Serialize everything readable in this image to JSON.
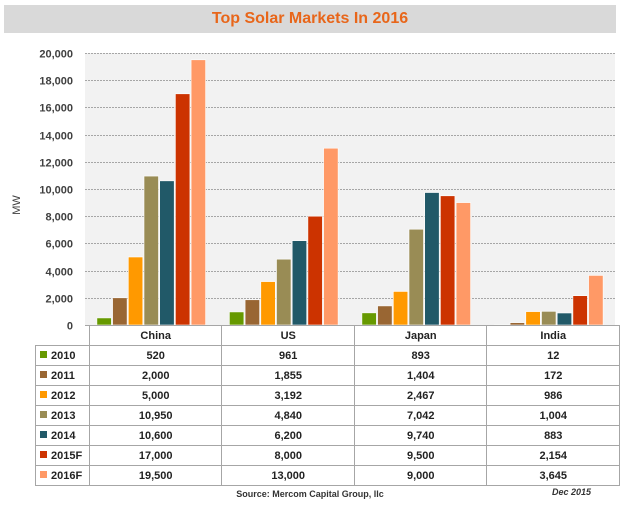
{
  "chart_data": {
    "type": "bar",
    "title": "Top Solar Markets In 2016",
    "xlabel": "",
    "ylabel": "MW",
    "ylim": [
      0,
      20000
    ],
    "yticks": [
      "0",
      "2,000",
      "4,000",
      "6,000",
      "8,000",
      "10,000",
      "12,000",
      "14,000",
      "16,000",
      "18,000",
      "20,000"
    ],
    "ytick_values": [
      0,
      2000,
      4000,
      6000,
      8000,
      10000,
      12000,
      14000,
      16000,
      18000,
      20000
    ],
    "grid": true,
    "legend": "data-table",
    "categories": [
      "China",
      "US",
      "Japan",
      "India"
    ],
    "series": [
      {
        "name": "2010",
        "color": "#669900",
        "values": [
          520,
          961,
          893,
          12
        ],
        "labels": [
          "520",
          "961",
          "893",
          "12"
        ]
      },
      {
        "name": "2011",
        "color": "#996633",
        "values": [
          2000,
          1855,
          1404,
          172
        ],
        "labels": [
          "2,000",
          "1,855",
          "1,404",
          "172"
        ]
      },
      {
        "name": "2012",
        "color": "#ff9900",
        "values": [
          5000,
          3192,
          2467,
          986
        ],
        "labels": [
          "5,000",
          "3,192",
          "2,467",
          "986"
        ]
      },
      {
        "name": "2013",
        "color": "#998c55",
        "values": [
          10950,
          4840,
          7042,
          1004
        ],
        "labels": [
          "10,950",
          "4,840",
          "7,042",
          "1,004"
        ]
      },
      {
        "name": "2014",
        "color": "#215968",
        "values": [
          10600,
          6200,
          9740,
          883
        ],
        "labels": [
          "10,600",
          "6,200",
          "9,740",
          "883"
        ]
      },
      {
        "name": "2015F",
        "color": "#cc3300",
        "values": [
          17000,
          8000,
          9500,
          2154
        ],
        "labels": [
          "17,000",
          "8,000",
          "9,500",
          "2,154"
        ]
      },
      {
        "name": "2016F",
        "color": "#ff9966",
        "values": [
          19500,
          13000,
          9000,
          3645
        ],
        "labels": [
          "19,500",
          "13,000",
          "9,000",
          "3,645"
        ]
      }
    ]
  },
  "footer": {
    "source": "Source: Mercom Capital Group, llc",
    "date": "Dec 2015"
  }
}
